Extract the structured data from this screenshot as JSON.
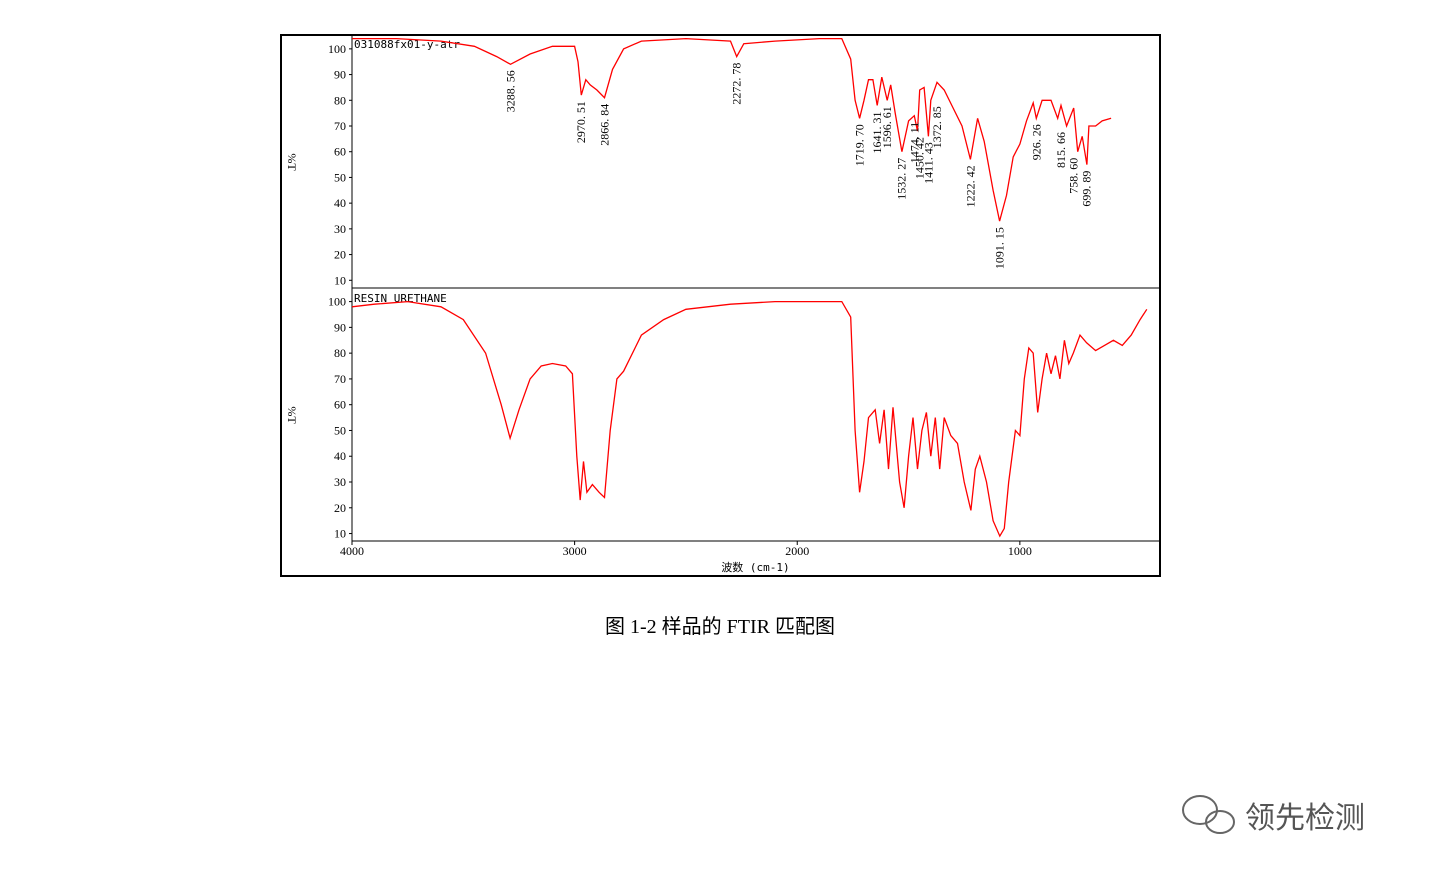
{
  "chart_data": [
    {
      "type": "line",
      "title": "031088fx01-y-atr",
      "ylabel": "%T",
      "x": [
        4000,
        3800,
        3600,
        3450,
        3350,
        3288,
        3200,
        3100,
        3000,
        2985,
        2970,
        2950,
        2930,
        2900,
        2866,
        2830,
        2780,
        2700,
        2500,
        2300,
        2272,
        2240,
        2100,
        1900,
        1800,
        1760,
        1740,
        1720,
        1700,
        1680,
        1660,
        1641,
        1620,
        1596,
        1580,
        1560,
        1530,
        1500,
        1474,
        1460,
        1450,
        1430,
        1411,
        1400,
        1372,
        1340,
        1300,
        1260,
        1222,
        1190,
        1160,
        1120,
        1091,
        1060,
        1030,
        1000,
        970,
        940,
        926,
        900,
        860,
        830,
        815,
        790,
        758,
        740,
        720,
        699,
        690,
        660,
        630,
        590
      ],
      "values": [
        104,
        104,
        103,
        101,
        97,
        94,
        98,
        101,
        101,
        95,
        82,
        88,
        86,
        84,
        81,
        92,
        100,
        103,
        104,
        103,
        97,
        102,
        103,
        104,
        104,
        96,
        80,
        73,
        80,
        88,
        88,
        78,
        89,
        80,
        86,
        75,
        60,
        72,
        74,
        68,
        84,
        85,
        66,
        80,
        87,
        84,
        77,
        70,
        57,
        73,
        64,
        45,
        33,
        43,
        58,
        63,
        72,
        79,
        73,
        80,
        80,
        73,
        78,
        70,
        77,
        60,
        66,
        55,
        70,
        70,
        72,
        73
      ],
      "color": "#ff0000",
      "xlim": [
        4000,
        375
      ],
      "ylim": [
        7,
        105
      ],
      "yticks": [
        10,
        20,
        30,
        40,
        50,
        60,
        70,
        80,
        90,
        100
      ],
      "annotations": [
        {
          "x": 3288.56,
          "y": 94,
          "label": "3288. 56"
        },
        {
          "x": 2970.51,
          "y": 82,
          "label": "2970. 51"
        },
        {
          "x": 2866.84,
          "y": 81,
          "label": "2866. 84"
        },
        {
          "x": 2272.78,
          "y": 97,
          "label": "2272. 78"
        },
        {
          "x": 1719.7,
          "y": 73,
          "label": "1719. 70"
        },
        {
          "x": 1641.31,
          "y": 78,
          "label": "1641. 31"
        },
        {
          "x": 1596.61,
          "y": 80,
          "label": "1596. 61"
        },
        {
          "x": 1532.27,
          "y": 60,
          "label": "1532. 27"
        },
        {
          "x": 1474.11,
          "y": 74,
          "label": "1474. 11"
        },
        {
          "x": 1450.42,
          "y": 68,
          "label": "1450. 42"
        },
        {
          "x": 1411.43,
          "y": 66,
          "label": "1411. 43"
        },
        {
          "x": 1372.85,
          "y": 80,
          "label": "1372. 85"
        },
        {
          "x": 1222.42,
          "y": 57,
          "label": "1222. 42"
        },
        {
          "x": 1091.15,
          "y": 33,
          "label": "1091. 15"
        },
        {
          "x": 926.26,
          "y": 73,
          "label": "926. 26"
        },
        {
          "x": 815.66,
          "y": 70,
          "label": "815. 66"
        },
        {
          "x": 758.6,
          "y": 60,
          "label": "758. 60"
        },
        {
          "x": 699.89,
          "y": 55,
          "label": "699. 89"
        }
      ]
    },
    {
      "type": "line",
      "title": "RESIN URETHANE",
      "ylabel": "%T",
      "xlabel": "波数 (cm-1)",
      "x": [
        4000,
        3900,
        3750,
        3600,
        3500,
        3400,
        3330,
        3290,
        3250,
        3200,
        3150,
        3100,
        3040,
        3010,
        2990,
        2975,
        2960,
        2945,
        2920,
        2890,
        2866,
        2840,
        2810,
        2780,
        2700,
        2600,
        2500,
        2300,
        2100,
        1900,
        1800,
        1760,
        1740,
        1720,
        1700,
        1680,
        1650,
        1630,
        1610,
        1590,
        1570,
        1540,
        1520,
        1500,
        1480,
        1460,
        1440,
        1420,
        1400,
        1380,
        1360,
        1340,
        1310,
        1280,
        1250,
        1220,
        1200,
        1180,
        1150,
        1120,
        1090,
        1070,
        1050,
        1020,
        1000,
        980,
        960,
        940,
        920,
        900,
        880,
        860,
        840,
        820,
        800,
        780,
        760,
        730,
        700,
        660,
        620,
        580,
        540,
        500,
        460,
        430
      ],
      "values": [
        98,
        99,
        100,
        98,
        93,
        80,
        60,
        47,
        58,
        70,
        75,
        76,
        75,
        72,
        40,
        23,
        38,
        26,
        29,
        26,
        24,
        50,
        70,
        73,
        87,
        93,
        97,
        99,
        100,
        100,
        100,
        94,
        50,
        26,
        38,
        55,
        58,
        45,
        58,
        35,
        59,
        30,
        20,
        40,
        55,
        35,
        50,
        57,
        40,
        55,
        35,
        55,
        48,
        45,
        30,
        19,
        35,
        40,
        30,
        15,
        9,
        12,
        30,
        50,
        48,
        70,
        82,
        80,
        57,
        70,
        80,
        72,
        79,
        70,
        85,
        76,
        80,
        87,
        84,
        81,
        83,
        85,
        83,
        87,
        93,
        97
      ],
      "color": "#ff0000",
      "xlim": [
        4000,
        375
      ],
      "ylim": [
        7.5,
        104.5
      ],
      "yticks": [
        10,
        20,
        30,
        40,
        50,
        60,
        70,
        80,
        90,
        100
      ],
      "xticks": [
        4000,
        3000,
        2000,
        1000
      ]
    }
  ],
  "caption": "图 1-2 样品的 FTIR 匹配图",
  "watermark": "领先检测"
}
